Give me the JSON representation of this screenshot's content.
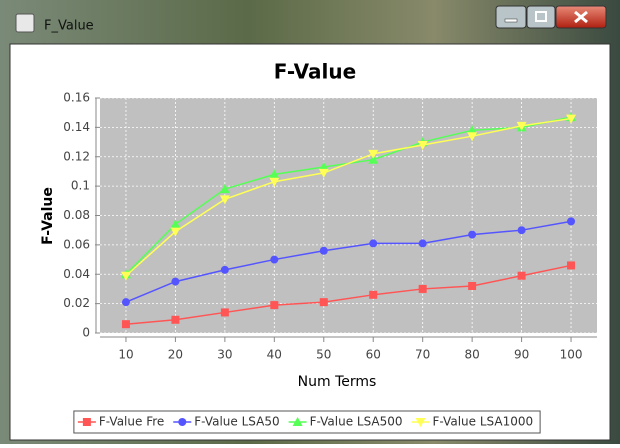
{
  "window": {
    "title": "F_Value"
  },
  "chart_data": {
    "type": "line",
    "title": "F-Value",
    "x_label": "Num Terms",
    "y_label": "F-Value",
    "x": [
      10,
      20,
      30,
      40,
      50,
      60,
      70,
      80,
      90,
      100
    ],
    "series": [
      {
        "name": "F-Value Fre",
        "color": "#ff5555",
        "marker": "square",
        "values": [
          0.006,
          0.009,
          0.014,
          0.019,
          0.021,
          0.026,
          0.03,
          0.032,
          0.039,
          0.046
        ]
      },
      {
        "name": "F-Value LSA50",
        "color": "#5555ff",
        "marker": "circle",
        "values": [
          0.021,
          0.035,
          0.043,
          0.05,
          0.056,
          0.061,
          0.061,
          0.067,
          0.07,
          0.076
        ]
      },
      {
        "name": "F-Value LSA500",
        "color": "#55ff55",
        "marker": "triangle-up",
        "values": [
          0.04,
          0.074,
          0.098,
          0.108,
          0.113,
          0.118,
          0.13,
          0.138,
          0.14,
          0.147
        ]
      },
      {
        "name": "F-Value LSA1000",
        "color": "#ffff55",
        "marker": "triangle-down",
        "values": [
          0.039,
          0.069,
          0.091,
          0.103,
          0.109,
          0.122,
          0.128,
          0.134,
          0.141,
          0.146
        ]
      }
    ],
    "xlim": [
      4.75,
      105.25
    ],
    "xticks": [
      10,
      20,
      30,
      40,
      50,
      60,
      70,
      80,
      90,
      100
    ],
    "ylim": [
      0,
      0.16
    ],
    "yticks": [
      0,
      0.02,
      0.04,
      0.06,
      0.08,
      0.1,
      0.12,
      0.14,
      0.16
    ],
    "grid": true,
    "legend": "bottom"
  }
}
